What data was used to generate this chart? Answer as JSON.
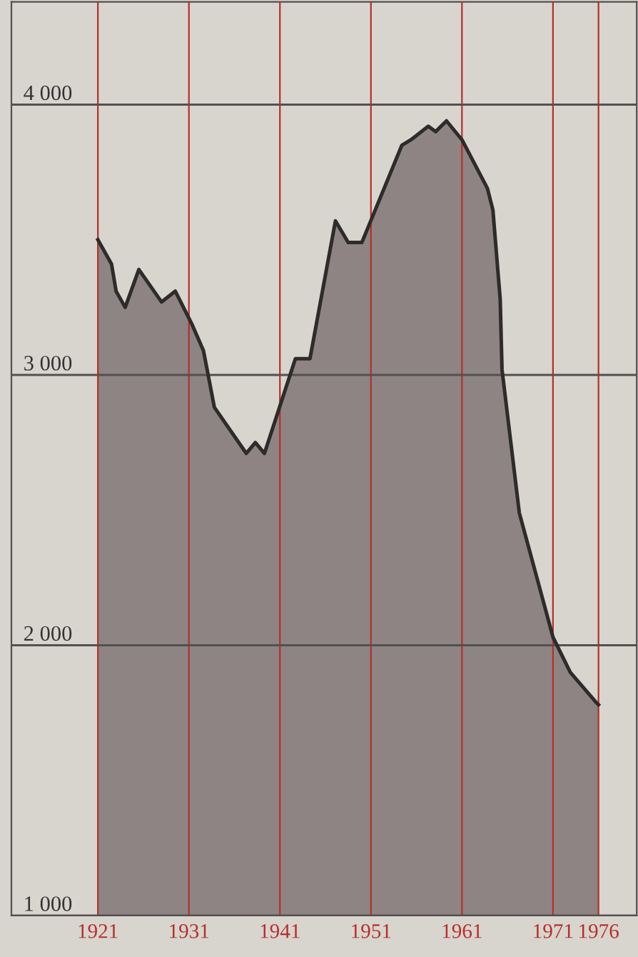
{
  "chart_data": {
    "type": "area",
    "x": [
      1921,
      1922.5,
      1923,
      1924,
      1925.5,
      1928,
      1929.5,
      1931.3,
      1932.6,
      1933.8,
      1937.3,
      1938.3,
      1939.3,
      1942.7,
      1944.3,
      1947.1,
      1948.5,
      1950,
      1954.4,
      1955.4,
      1957.3,
      1958.1,
      1959.3,
      1961,
      1963.8,
      1964.4,
      1965.2,
      1965.4,
      1967.3,
      1971,
      1972.9,
      1975.7,
      1976
    ],
    "series": [
      {
        "color": "#8e8484",
        "values": [
          3500,
          3410,
          3310,
          3250,
          3390,
          3270,
          3310,
          3190,
          3090,
          2880,
          2710,
          2750,
          2710,
          3060,
          3060,
          3570,
          3490,
          3490,
          3850,
          3870,
          3920,
          3900,
          3940,
          3870,
          3690,
          3610,
          3280,
          3020,
          2490,
          2030,
          1900,
          1790,
          1780
        ]
      }
    ],
    "xlim": [
      1911.5,
      1980.2
    ],
    "ylim": [
      1000,
      4380
    ],
    "xticks": [
      1921,
      1931,
      1941,
      1951,
      1961,
      1971,
      1976
    ],
    "yticks": [
      {
        "value": 1000,
        "label": "1 000"
      },
      {
        "value": 2000,
        "label": "2 000"
      },
      {
        "value": 3000,
        "label": "3 000"
      },
      {
        "value": 4000,
        "label": "4 000"
      }
    ],
    "grid": true
  }
}
